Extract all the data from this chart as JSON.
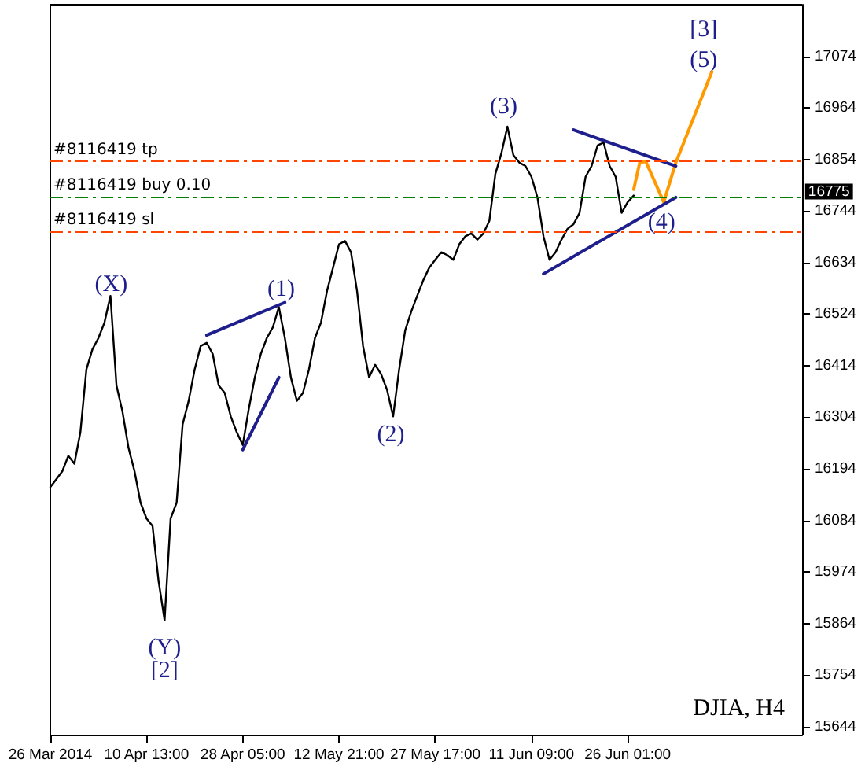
{
  "chart_data": {
    "type": "line",
    "title": "DJIA, H4",
    "categories": [
      "26 Mar 2014",
      null,
      null,
      null,
      null,
      null,
      null,
      null,
      null,
      null,
      null,
      null,
      null,
      null,
      null,
      null,
      "10 Apr 13:00",
      null,
      null,
      null,
      null,
      null,
      null,
      null,
      null,
      null,
      null,
      null,
      null,
      null,
      null,
      null,
      "28 Apr 05:00",
      null,
      null,
      null,
      null,
      null,
      null,
      null,
      null,
      null,
      null,
      null,
      null,
      null,
      null,
      null,
      "12 May 21:00",
      null,
      null,
      null,
      null,
      null,
      null,
      null,
      null,
      null,
      null,
      null,
      null,
      null,
      null,
      null,
      "27 May 17:00",
      null,
      null,
      null,
      null,
      null,
      null,
      null,
      null,
      null,
      null,
      null,
      null,
      null,
      null,
      null,
      "11 Jun 09:00",
      null,
      null,
      null,
      null,
      null,
      null,
      null,
      null,
      null,
      null,
      null,
      null,
      null,
      null,
      null,
      "26 Jun 01:00",
      null,
      null,
      null,
      null,
      null,
      null,
      null,
      null,
      null,
      null,
      null,
      null,
      null,
      null,
      null,
      null,
      null,
      null,
      null,
      null,
      null,
      null,
      null,
      null,
      null,
      null,
      null,
      null,
      null
    ],
    "ylim": [
      15627,
      17184
    ],
    "yticks": [
      15644,
      15754,
      15864,
      15974,
      16084,
      16194,
      16304,
      16414,
      16524,
      16634,
      16744,
      16854,
      16964,
      17074
    ],
    "series": [
      {
        "color": "#000000",
        "values": [
          16155,
          16172,
          16189,
          16222,
          16205,
          16272,
          16406,
          16449,
          16473,
          16506,
          16563,
          16372,
          16316,
          16239,
          16189,
          16122,
          16088,
          16072,
          15955,
          15871,
          16088,
          16122,
          16289,
          16339,
          16406,
          16456,
          16463,
          16439,
          16372,
          16356,
          16306,
          16272,
          16245,
          16322,
          16389,
          16439,
          16473,
          16496,
          16539,
          16473,
          16389,
          16339,
          16356,
          16406,
          16473,
          16506,
          16573,
          16623,
          16673,
          16680,
          16656,
          16573,
          16456,
          16389,
          16416,
          16396,
          16362,
          16306,
          16406,
          16489,
          16529,
          16563,
          16596,
          16623,
          16640,
          16656,
          16650,
          16640,
          16673,
          16690,
          16696,
          16683,
          16696,
          16723,
          16823,
          16867,
          16924,
          16863,
          16847,
          16840,
          16817,
          16773,
          16690,
          16640,
          16656,
          16683,
          16706,
          16716,
          16740,
          16817,
          16840,
          16884,
          16890,
          16840,
          16817,
          16740,
          16763,
          16777,
          null,
          null,
          null,
          null,
          null,
          null,
          null,
          null,
          null,
          null,
          null,
          null,
          null,
          null,
          null,
          null,
          null,
          null,
          null,
          null,
          null,
          null,
          null,
          null,
          null,
          null,
          null,
          null
        ]
      },
      {
        "color": "#ff9900",
        "values": [
          null,
          null,
          null,
          null,
          null,
          null,
          null,
          null,
          null,
          null,
          null,
          null,
          null,
          null,
          null,
          null,
          null,
          null,
          null,
          null,
          null,
          null,
          null,
          null,
          null,
          null,
          null,
          null,
          null,
          null,
          null,
          null,
          null,
          null,
          null,
          null,
          null,
          null,
          null,
          null,
          null,
          null,
          null,
          null,
          null,
          null,
          null,
          null,
          null,
          null,
          null,
          null,
          null,
          null,
          null,
          null,
          null,
          null,
          null,
          null,
          null,
          null,
          null,
          null,
          null,
          null,
          null,
          null,
          null,
          null,
          null,
          null,
          null,
          null,
          null,
          null,
          null,
          null,
          null,
          null,
          null,
          null,
          null,
          null,
          null,
          null,
          null,
          null,
          null,
          null,
          null,
          null,
          null,
          null,
          null,
          null,
          null,
          16790,
          16847,
          16850,
          null,
          null,
          16763,
          null,
          16847,
          null,
          null,
          null,
          null,
          null,
          17041,
          null,
          null,
          null,
          null,
          null,
          null,
          null,
          null,
          null,
          null,
          null,
          null,
          null,
          null,
          null
        ]
      },
      {
        "color": "#1e1e8c",
        "values": [
          null,
          null,
          null,
          null,
          null,
          null,
          null,
          null,
          null,
          null,
          null,
          null,
          null,
          null,
          null,
          null,
          null,
          null,
          null,
          null,
          null,
          null,
          null,
          null,
          null,
          null,
          16479,
          null,
          null,
          null,
          null,
          null,
          null,
          null,
          null,
          null,
          null,
          null,
          null,
          16549,
          null,
          null,
          null,
          null,
          null,
          null,
          null,
          null,
          null,
          null,
          null,
          null,
          null,
          null,
          null,
          null,
          null,
          null,
          null,
          null,
          null,
          null,
          null,
          null,
          null,
          null,
          null,
          null,
          null,
          null,
          null,
          null,
          null,
          null,
          null,
          null,
          null,
          null,
          null,
          null,
          null,
          null,
          null,
          null,
          null,
          null,
          null,
          null,
          null,
          null,
          null,
          null,
          null,
          null,
          null,
          null,
          null,
          null,
          null,
          null,
          null,
          null,
          null,
          null,
          null,
          null,
          null,
          null,
          null,
          null,
          null,
          null,
          null,
          null,
          null,
          null,
          null,
          null,
          null,
          null,
          null,
          null,
          null,
          null,
          null,
          null
        ]
      },
      {
        "color": "#1e1e8c",
        "values": [
          null,
          null,
          null,
          null,
          null,
          null,
          null,
          null,
          null,
          null,
          null,
          null,
          null,
          null,
          null,
          null,
          null,
          null,
          null,
          null,
          null,
          null,
          null,
          null,
          null,
          null,
          null,
          null,
          null,
          null,
          null,
          null,
          16235,
          null,
          null,
          null,
          null,
          null,
          16389,
          null,
          null,
          null,
          null,
          null,
          null,
          null,
          null,
          null,
          null,
          null,
          null,
          null,
          null,
          null,
          null,
          null,
          null,
          null,
          null,
          null,
          null,
          null,
          null,
          null,
          null,
          null,
          null,
          null,
          null,
          null,
          null,
          null,
          null,
          null,
          null,
          null,
          null,
          null,
          null,
          null,
          null,
          null,
          null,
          null,
          null,
          null,
          null,
          null,
          null,
          null,
          null,
          null,
          null,
          null,
          null,
          null,
          null,
          null,
          null,
          null,
          null,
          null,
          null,
          null,
          null,
          null,
          null,
          null,
          null,
          null,
          null,
          null,
          null,
          null,
          null,
          null,
          null,
          null,
          null,
          null,
          null,
          null,
          null,
          null,
          null,
          null
        ]
      },
      {
        "color": "#1e1e8c",
        "values": [
          null,
          null,
          null,
          null,
          null,
          null,
          null,
          null,
          null,
          null,
          null,
          null,
          null,
          null,
          null,
          null,
          null,
          null,
          null,
          null,
          null,
          null,
          null,
          null,
          null,
          null,
          null,
          null,
          null,
          null,
          null,
          null,
          null,
          null,
          null,
          null,
          null,
          null,
          null,
          null,
          null,
          null,
          null,
          null,
          null,
          null,
          null,
          null,
          null,
          null,
          null,
          null,
          null,
          null,
          null,
          null,
          null,
          null,
          null,
          null,
          null,
          null,
          null,
          null,
          null,
          null,
          null,
          null,
          null,
          null,
          null,
          null,
          null,
          null,
          null,
          null,
          null,
          null,
          null,
          null,
          null,
          null,
          null,
          null,
          null,
          null,
          null,
          16917,
          null,
          null,
          null,
          null,
          null,
          null,
          null,
          null,
          null,
          null,
          null,
          null,
          null,
          null,
          null,
          null,
          16840,
          null,
          null,
          null,
          null,
          null,
          null,
          null,
          null,
          null,
          null,
          null,
          null,
          null,
          null,
          null,
          null,
          null,
          null,
          null,
          null,
          null
        ]
      },
      {
        "color": "#1e1e8c",
        "values": [
          null,
          null,
          null,
          null,
          null,
          null,
          null,
          null,
          null,
          null,
          null,
          null,
          null,
          null,
          null,
          null,
          null,
          null,
          null,
          null,
          null,
          null,
          null,
          null,
          null,
          null,
          null,
          null,
          null,
          null,
          null,
          null,
          null,
          null,
          null,
          null,
          null,
          null,
          null,
          null,
          null,
          null,
          null,
          null,
          null,
          null,
          null,
          null,
          null,
          null,
          null,
          null,
          null,
          null,
          null,
          null,
          null,
          null,
          null,
          null,
          null,
          null,
          null,
          null,
          null,
          null,
          null,
          null,
          null,
          null,
          null,
          null,
          null,
          null,
          null,
          null,
          null,
          null,
          null,
          null,
          null,
          null,
          16610,
          null,
          null,
          null,
          null,
          null,
          null,
          null,
          null,
          null,
          null,
          null,
          null,
          null,
          null,
          null,
          null,
          null,
          null,
          null,
          null,
          null,
          16773,
          null,
          null,
          null,
          null,
          null,
          null,
          null,
          null,
          null,
          null,
          null,
          null,
          null,
          null,
          null,
          null,
          null,
          null,
          null,
          null,
          null
        ]
      }
    ],
    "ref_lines": [
      {
        "axis": "y",
        "value": 16850,
        "label": "#8116419 tp",
        "color": "#ff4500",
        "line_style": "dashed"
      },
      {
        "axis": "y",
        "value": 16775,
        "label": "#8116419 buy 0.10",
        "color": "#008000",
        "line_style": "dashed"
      },
      {
        "axis": "y",
        "value": 16700,
        "label": "#8116419 sl",
        "color": "#ff4500",
        "line_style": "dashed"
      }
    ],
    "annotations": [
      "(X)",
      "(Y)",
      "[2]",
      "(1)",
      "(2)",
      "(3)",
      "(4)",
      "(5)",
      "[3]",
      "16775"
    ],
    "grid": false,
    "marker": "none",
    "line_style": "solid"
  }
}
